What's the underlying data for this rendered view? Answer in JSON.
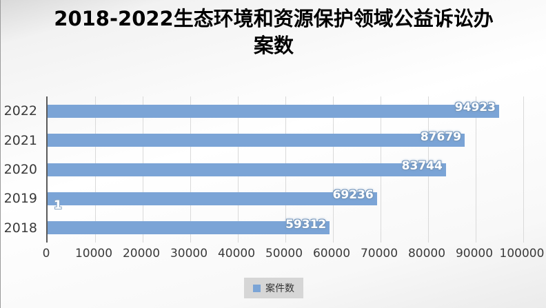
{
  "title": "2018-2022生态环境和资源保护领域公益诉讼办案数",
  "chart_data": {
    "type": "bar",
    "orientation": "horizontal",
    "title": "2018-2022生态环境和资源保护领域公益诉讼办案数",
    "categories": [
      "2022",
      "2021",
      "2020",
      "2019",
      "2018"
    ],
    "series": [
      {
        "name": "案件数",
        "values": [
          94923,
          87679,
          83744,
          69236,
          59312
        ]
      }
    ],
    "xlim": [
      0,
      100000
    ],
    "x_ticks": [
      0,
      10000,
      20000,
      30000,
      40000,
      50000,
      60000,
      70000,
      80000,
      90000,
      100000
    ],
    "grid": true,
    "legend_position": "bottom",
    "bar_color": "#7ba4d6",
    "annotations": [
      {
        "text": "1",
        "note": "stray data label near start of 2018 bar"
      }
    ]
  }
}
